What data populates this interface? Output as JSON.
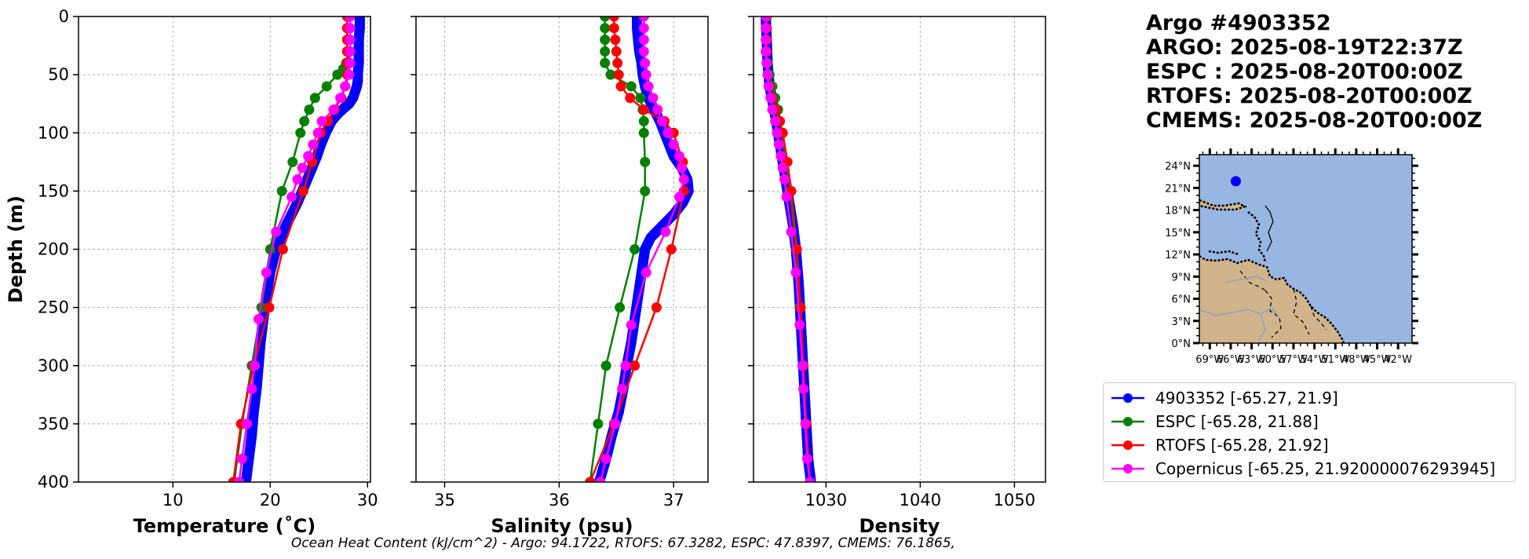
{
  "title_lines": [
    "Argo #4903352",
    "ARGO: 2025-08-19T22:37Z",
    "ESPC : 2025-08-20T00:00Z",
    "RTOFS: 2025-08-20T00:00Z",
    "CMEMS: 2025-08-20T00:00Z"
  ],
  "footer_text": "Ocean Heat Content (kJ/cm^2) - Argo: 94.1722,  RTOFS: 67.3282,  ESPC: 47.8397,  CMEMS: 76.1865,",
  "colors": {
    "argo": "#0000ff",
    "espc": "#008000",
    "rtofs": "#ff0000",
    "copernicus": "#ff00ff",
    "ocean": "#97b6e1",
    "land": "#d2b48c",
    "grid": "#b0b0b0"
  },
  "legend": [
    {
      "key": "argo",
      "label": "4903352 [-65.27, 21.9]"
    },
    {
      "key": "espc",
      "label": "ESPC [-65.28, 21.88]"
    },
    {
      "key": "rtofs",
      "label": "RTOFS [-65.28, 21.92]"
    },
    {
      "key": "copernicus",
      "label": "Copernicus [-65.25, 21.920000076293945]"
    }
  ],
  "chart_data": [
    {
      "type": "line",
      "panel": "temperature",
      "xlabel": "Temperature (˚C)",
      "ylabel": "Depth (m)",
      "xlim": [
        0.3,
        30.3
      ],
      "ylim": [
        400,
        0
      ],
      "xticks": [
        10,
        20,
        30
      ],
      "yticks": [
        0,
        50,
        100,
        150,
        200,
        250,
        300,
        350,
        400
      ],
      "grid": true,
      "series": [
        {
          "name": "4903352",
          "key": "argo",
          "dense": true,
          "depth": [
            0,
            10,
            20,
            30,
            40,
            50,
            55,
            60,
            65,
            70,
            75,
            80,
            85,
            90,
            100,
            110,
            120,
            130,
            140,
            150,
            160,
            170,
            180,
            190,
            200,
            220,
            240,
            260,
            280,
            300,
            320,
            340,
            360,
            380,
            400
          ],
          "values": [
            29.2,
            29.2,
            29.1,
            29.1,
            29.1,
            29.0,
            29.0,
            28.9,
            28.7,
            28.5,
            28.1,
            27.4,
            26.8,
            26.3,
            25.7,
            25.2,
            24.8,
            24.3,
            23.8,
            23.3,
            22.8,
            22.2,
            21.6,
            21.1,
            20.6,
            20.0,
            19.6,
            19.3,
            19.0,
            18.8,
            18.6,
            18.3,
            18.1,
            17.8,
            17.5
          ]
        },
        {
          "name": "ESPC",
          "key": "espc",
          "depth": [
            0,
            10,
            20,
            30,
            40,
            45,
            50,
            60,
            70,
            80,
            90,
            100,
            125,
            150,
            200,
            250,
            300,
            350,
            400
          ],
          "values": [
            28.2,
            28.2,
            28.2,
            28.2,
            27.8,
            27.5,
            26.9,
            25.8,
            24.6,
            24.0,
            23.5,
            23.1,
            22.3,
            21.2,
            20.0,
            19.1,
            18.1,
            17.1,
            16.3
          ]
        },
        {
          "name": "RTOFS",
          "key": "rtofs",
          "depth": [
            0,
            10,
            20,
            30,
            40,
            50,
            60,
            70,
            80,
            90,
            100,
            125,
            150,
            200,
            250,
            300,
            350,
            400
          ],
          "values": [
            27.9,
            27.9,
            27.9,
            27.9,
            27.9,
            27.9,
            27.7,
            27.3,
            26.6,
            25.9,
            25.2,
            24.3,
            23.4,
            21.3,
            19.9,
            18.3,
            17.0,
            16.2
          ]
        },
        {
          "name": "Copernicus",
          "key": "copernicus",
          "depth": [
            0,
            10,
            20,
            30,
            40,
            50,
            60,
            70,
            80,
            90,
            100,
            110,
            120,
            130,
            140,
            155,
            185,
            220,
            260,
            300,
            320,
            350,
            380,
            400
          ],
          "values": [
            28.2,
            28.2,
            28.2,
            28.2,
            28.2,
            28.1,
            27.7,
            27.2,
            26.5,
            25.3,
            24.9,
            24.4,
            23.9,
            23.3,
            22.8,
            22.2,
            20.6,
            19.6,
            18.8,
            18.4,
            18.1,
            17.6,
            17.1,
            16.8
          ]
        }
      ]
    },
    {
      "type": "line",
      "panel": "salinity",
      "xlabel": "Salinity (psu)",
      "ylabel": "",
      "xlim": [
        34.75,
        37.3
      ],
      "ylim": [
        400,
        0
      ],
      "xticks": [
        35,
        36,
        37
      ],
      "yticks": [
        0,
        50,
        100,
        150,
        200,
        250,
        300,
        350,
        400
      ],
      "grid": true,
      "series": [
        {
          "name": "4903352",
          "key": "argo",
          "dense": true,
          "depth": [
            0,
            10,
            20,
            30,
            40,
            50,
            60,
            70,
            80,
            90,
            100,
            110,
            120,
            130,
            140,
            150,
            160,
            170,
            180,
            190,
            200,
            220,
            240,
            260,
            280,
            300,
            320,
            340,
            360,
            380,
            400
          ],
          "values": [
            36.68,
            36.68,
            36.69,
            36.7,
            36.72,
            36.73,
            36.75,
            36.78,
            36.83,
            36.88,
            36.92,
            36.96,
            37.0,
            37.07,
            37.12,
            37.13,
            37.08,
            37.0,
            36.9,
            36.8,
            36.75,
            36.72,
            36.69,
            36.66,
            36.63,
            36.59,
            36.56,
            36.52,
            36.46,
            36.41,
            36.35
          ]
        },
        {
          "name": "ESPC",
          "key": "espc",
          "depth": [
            0,
            10,
            20,
            30,
            40,
            50,
            60,
            70,
            80,
            90,
            100,
            125,
            150,
            200,
            250,
            300,
            350,
            400
          ],
          "values": [
            36.4,
            36.4,
            36.4,
            36.4,
            36.4,
            36.45,
            36.63,
            36.71,
            36.73,
            36.74,
            36.74,
            36.75,
            36.75,
            36.66,
            36.53,
            36.41,
            36.34,
            36.27
          ]
        },
        {
          "name": "RTOFS",
          "key": "rtofs",
          "depth": [
            0,
            10,
            20,
            30,
            40,
            50,
            60,
            70,
            80,
            90,
            100,
            125,
            150,
            200,
            250,
            300,
            350,
            400
          ],
          "values": [
            36.48,
            36.48,
            36.49,
            36.5,
            36.51,
            36.52,
            36.54,
            36.62,
            36.74,
            36.92,
            37.0,
            37.08,
            37.09,
            36.98,
            36.85,
            36.66,
            36.48,
            36.27
          ]
        },
        {
          "name": "Copernicus",
          "key": "copernicus",
          "depth": [
            0,
            10,
            20,
            30,
            40,
            50,
            60,
            70,
            80,
            90,
            100,
            110,
            120,
            130,
            140,
            155,
            185,
            220,
            265,
            300,
            320,
            350,
            380,
            400
          ],
          "values": [
            36.74,
            36.74,
            36.74,
            36.74,
            36.75,
            36.76,
            36.78,
            36.82,
            36.86,
            36.9,
            36.95,
            37.0,
            37.05,
            37.07,
            37.09,
            37.05,
            36.93,
            36.76,
            36.63,
            36.58,
            36.55,
            36.49,
            36.41,
            36.36
          ]
        }
      ]
    },
    {
      "type": "line",
      "panel": "density",
      "xlabel": "Density",
      "ylabel": "",
      "xlim": [
        1022.3,
        1053.3
      ],
      "ylim": [
        400,
        0
      ],
      "xticks": [
        1030,
        1040,
        1050
      ],
      "yticks": [
        0,
        50,
        100,
        150,
        200,
        250,
        300,
        350,
        400
      ],
      "grid": true,
      "series": [
        {
          "name": "4903352",
          "key": "argo",
          "dense": true,
          "depth": [
            0,
            20,
            40,
            60,
            80,
            100,
            120,
            140,
            160,
            180,
            200,
            230,
            260,
            290,
            320,
            350,
            380,
            400
          ],
          "values": [
            1023.6,
            1023.7,
            1023.8,
            1024.0,
            1024.5,
            1024.9,
            1025.3,
            1025.7,
            1026.1,
            1026.5,
            1026.8,
            1027.1,
            1027.3,
            1027.5,
            1027.7,
            1027.9,
            1028.1,
            1028.4
          ]
        },
        {
          "name": "ESPC",
          "key": "espc",
          "depth": [
            0,
            10,
            20,
            30,
            40,
            50,
            60,
            70,
            80,
            90,
            100,
            125,
            150,
            200,
            250,
            300,
            350,
            400
          ],
          "values": [
            1023.7,
            1023.7,
            1023.7,
            1023.7,
            1023.8,
            1024.0,
            1024.3,
            1024.6,
            1024.9,
            1025.1,
            1025.3,
            1025.7,
            1026.2,
            1026.8,
            1027.2,
            1027.6,
            1027.9,
            1028.3
          ]
        },
        {
          "name": "RTOFS",
          "key": "rtofs",
          "depth": [
            0,
            10,
            20,
            30,
            40,
            50,
            60,
            70,
            80,
            90,
            100,
            125,
            150,
            200,
            250,
            300,
            350,
            400
          ],
          "values": [
            1023.7,
            1023.7,
            1023.7,
            1023.7,
            1023.7,
            1023.8,
            1024.0,
            1024.3,
            1024.7,
            1025.1,
            1025.4,
            1025.9,
            1026.3,
            1026.9,
            1027.3,
            1027.6,
            1027.9,
            1028.3
          ]
        },
        {
          "name": "Copernicus",
          "key": "copernicus",
          "depth": [
            0,
            10,
            20,
            30,
            40,
            50,
            60,
            70,
            80,
            90,
            100,
            110,
            120,
            130,
            140,
            155,
            185,
            220,
            265,
            300,
            320,
            350,
            380,
            400
          ],
          "values": [
            1023.6,
            1023.6,
            1023.6,
            1023.6,
            1023.7,
            1023.8,
            1023.9,
            1024.1,
            1024.3,
            1024.6,
            1024.8,
            1025.0,
            1025.2,
            1025.4,
            1025.6,
            1025.8,
            1026.3,
            1026.8,
            1027.2,
            1027.5,
            1027.6,
            1027.8,
            1028.0,
            1028.3
          ]
        }
      ]
    }
  ],
  "map": {
    "lon_labels": [
      "69°W",
      "66°W",
      "63°W",
      "60°W",
      "57°W",
      "54°W",
      "51°W",
      "48°W",
      "45°W",
      "42°W"
    ],
    "lat_labels": [
      "0°N",
      "3°N",
      "6°N",
      "9°N",
      "12°N",
      "15°N",
      "18°N",
      "21°N",
      "24°N"
    ],
    "lon_range": [
      -70.5,
      -40
    ],
    "lat_range": [
      0,
      25.5
    ],
    "float_position": {
      "lon": -65.27,
      "lat": 21.9
    }
  }
}
